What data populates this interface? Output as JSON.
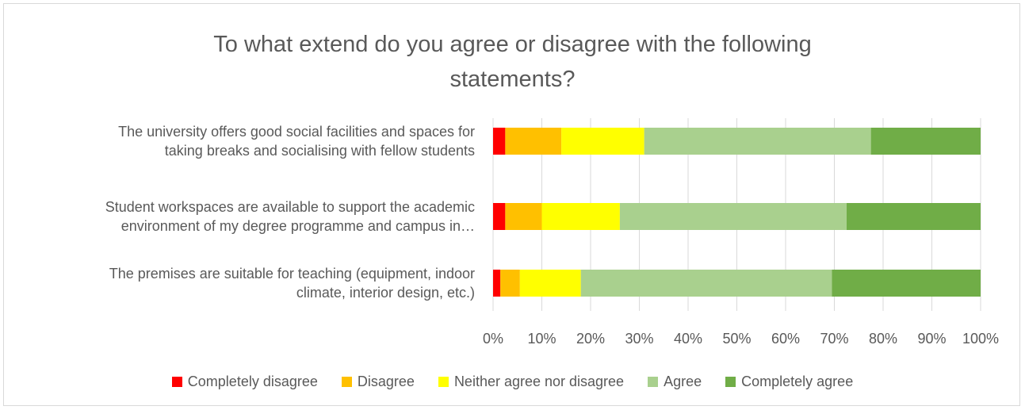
{
  "chart_data": {
    "type": "bar",
    "orientation": "horizontal",
    "stacked": "percent",
    "title": "To what extend do you agree or disagree with the following\nstatements?",
    "categories": [
      "The university offers good social facilities and spaces for\ntaking breaks and socialising with fellow students",
      "Student workspaces are available to support the academic\nenvironment of my degree programme and campus in…",
      "The premises are suitable for teaching (equipment, indoor\nclimate, interior design, etc.)"
    ],
    "series": [
      {
        "name": "Completely disagree",
        "color": "#ff0000",
        "values": [
          2.5,
          2.5,
          1.5
        ]
      },
      {
        "name": "Disagree",
        "color": "#ffc000",
        "values": [
          11.5,
          7.5,
          4
        ]
      },
      {
        "name": "Neither agree nor disagree",
        "color": "#ffff00",
        "values": [
          17,
          16,
          12.5
        ]
      },
      {
        "name": "Agree",
        "color": "#a9d08e",
        "values": [
          46.5,
          46.5,
          51.5
        ]
      },
      {
        "name": "Completely agree",
        "color": "#70ad47",
        "values": [
          22.5,
          27.5,
          30.5
        ]
      }
    ],
    "xlim": [
      0,
      100
    ],
    "xticks": [
      "0%",
      "10%",
      "20%",
      "30%",
      "40%",
      "50%",
      "60%",
      "70%",
      "80%",
      "90%",
      "100%"
    ],
    "grid": true,
    "legend_position": "bottom"
  }
}
